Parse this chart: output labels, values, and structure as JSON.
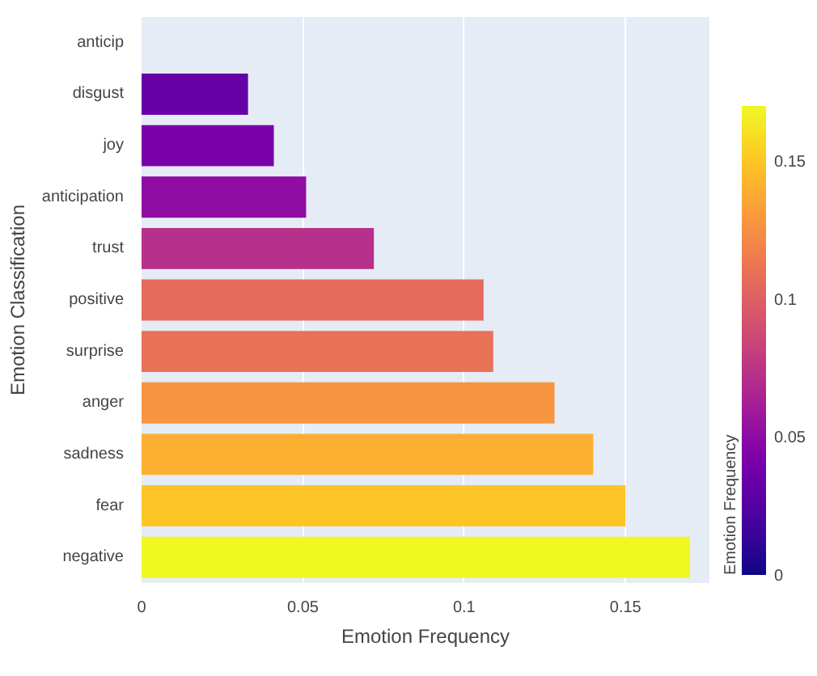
{
  "chart_data": {
    "type": "bar",
    "orientation": "horizontal",
    "xlabel": "Emotion Frequency",
    "ylabel": "Emotion Classification",
    "clabel": "Emotion Frequency",
    "categories": [
      "anticip",
      "disgust",
      "joy",
      "anticipation",
      "trust",
      "positive",
      "surprise",
      "anger",
      "sadness",
      "fear",
      "negative"
    ],
    "values": [
      0,
      0.033,
      0.041,
      0.051,
      0.072,
      0.106,
      0.109,
      0.128,
      0.14,
      0.15,
      0.17
    ],
    "xlim": [
      0,
      0.176
    ],
    "xticks": [
      0,
      0.05,
      0.1,
      0.15
    ],
    "clim": [
      0,
      0.17
    ],
    "cticks": [
      0,
      0.05,
      0.1,
      0.15
    ],
    "grid": "x"
  }
}
